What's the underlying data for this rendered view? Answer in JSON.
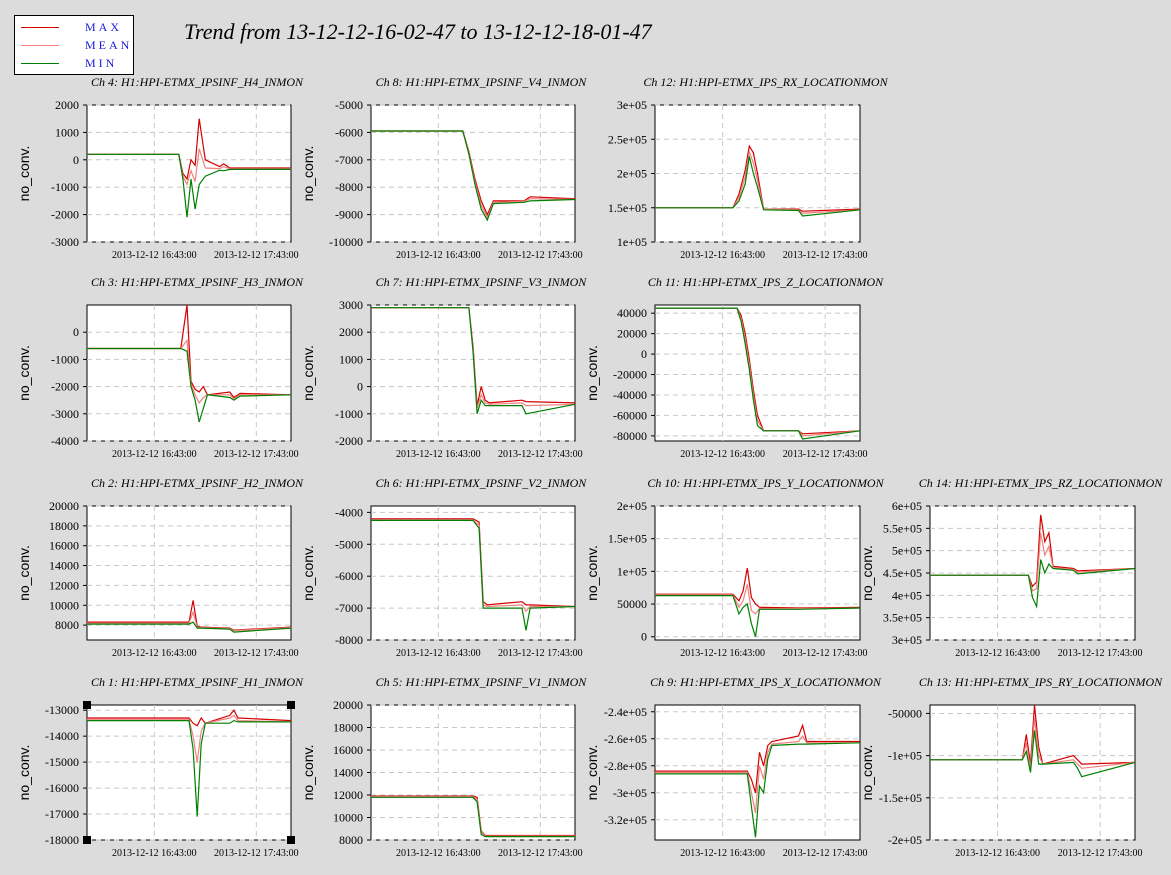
{
  "page": {
    "title": "Trend from 13-12-12-16-02-47 to 13-12-12-18-01-47"
  },
  "legend": {
    "items": [
      {
        "label": "MAX",
        "color": "#d40000"
      },
      {
        "label": "MEAN",
        "color": "#f08080"
      },
      {
        "label": "MIN",
        "color": "#008000"
      }
    ]
  },
  "chart_data": [
    {
      "type": "line",
      "title": "Ch 4: H1:HPI-ETMX_IPSINF_H4_INMON",
      "ylabel": "no_conv.",
      "ylim": [
        -3000,
        2000
      ],
      "yticks": [
        "2000",
        "1000",
        "0",
        "-1000",
        "-2000",
        "-3000"
      ],
      "xticks": [
        "2013-12-12 16:43:00",
        "2013-12-12 17:43:00"
      ],
      "x": [
        0.0,
        0.45,
        0.47,
        0.49,
        0.51,
        0.53,
        0.55,
        0.58,
        0.65,
        0.67,
        0.7,
        1.0
      ],
      "series": [
        {
          "name": "MAX",
          "values": [
            200,
            200,
            -500,
            -700,
            0,
            -200,
            1500,
            0,
            -250,
            -150,
            -300,
            -300
          ]
        },
        {
          "name": "MEAN",
          "values": [
            200,
            200,
            -600,
            -900,
            -400,
            -800,
            400,
            -300,
            -320,
            -250,
            -330,
            -330
          ]
        },
        {
          "name": "MIN",
          "values": [
            200,
            200,
            -700,
            -2100,
            -700,
            -1800,
            -900,
            -600,
            -380,
            -400,
            -350,
            -350
          ]
        }
      ]
    },
    {
      "type": "line",
      "title": "Ch 8: H1:HPI-ETMX_IPSINF_V4_INMON",
      "ylabel": "no_conv.",
      "ylim": [
        -10000,
        -5000
      ],
      "yticks": [
        "-5000",
        "-6000",
        "-7000",
        "-8000",
        "-9000",
        "-10000"
      ],
      "xticks": [
        "2013-12-12 16:43:00",
        "2013-12-12 17:43:00"
      ],
      "x": [
        0.0,
        0.45,
        0.48,
        0.51,
        0.54,
        0.57,
        0.6,
        0.75,
        0.78,
        1.0
      ],
      "series": [
        {
          "name": "MAX",
          "values": [
            -5950,
            -5950,
            -6700,
            -7700,
            -8500,
            -9000,
            -8500,
            -8500,
            -8350,
            -8420
          ]
        },
        {
          "name": "MEAN",
          "values": [
            -5950,
            -5950,
            -6750,
            -7800,
            -8650,
            -9100,
            -8550,
            -8520,
            -8420,
            -8440
          ]
        },
        {
          "name": "MIN",
          "values": [
            -5950,
            -5950,
            -6800,
            -7900,
            -8800,
            -9200,
            -8600,
            -8550,
            -8500,
            -8450
          ]
        }
      ]
    },
    {
      "type": "line",
      "title": "Ch 12: H1:HPI-ETMX_IPS_RX_LOCATIONMON",
      "ylabel": "",
      "ylim": [
        100000,
        300000
      ],
      "yticks": [
        "3e+05",
        "2.5e+05",
        "2e+05",
        "1.5e+05",
        "1e+05"
      ],
      "xticks": [
        "2013-12-12 16:43:00",
        "2013-12-12 17:43:00"
      ],
      "x": [
        0.0,
        0.38,
        0.41,
        0.44,
        0.46,
        0.48,
        0.5,
        0.53,
        0.7,
        0.72,
        1.0
      ],
      "series": [
        {
          "name": "MAX",
          "values": [
            150000,
            150000,
            170000,
            205000,
            240000,
            230000,
            200000,
            148000,
            148000,
            145000,
            148000
          ]
        },
        {
          "name": "MEAN",
          "values": [
            150000,
            150000,
            165000,
            195000,
            232000,
            215000,
            190000,
            148000,
            147000,
            142000,
            147000
          ]
        },
        {
          "name": "MIN",
          "values": [
            150000,
            150000,
            160000,
            185000,
            225000,
            200000,
            180000,
            147000,
            146000,
            138000,
            147000
          ]
        }
      ]
    },
    {
      "type": "line",
      "title": "Ch 3: H1:HPI-ETMX_IPSINF_H3_INMON",
      "ylabel": "no_conv.",
      "ylim": [
        -4000,
        1000
      ],
      "yticks": [
        "0",
        "-1000",
        "-2000",
        "-3000",
        "-4000"
      ],
      "xticks": [
        "2013-12-12 16:43:00",
        "2013-12-12 17:43:00"
      ],
      "x": [
        0.0,
        0.46,
        0.49,
        0.51,
        0.53,
        0.55,
        0.57,
        0.59,
        0.7,
        0.72,
        0.75,
        1.0
      ],
      "series": [
        {
          "name": "MAX",
          "values": [
            -600,
            -600,
            1000,
            -1800,
            -2100,
            -2200,
            -2000,
            -2300,
            -2200,
            -2400,
            -2250,
            -2300
          ]
        },
        {
          "name": "MEAN",
          "values": [
            -600,
            -600,
            -300,
            -1900,
            -2300,
            -2600,
            -2400,
            -2300,
            -2300,
            -2450,
            -2300,
            -2300
          ]
        },
        {
          "name": "MIN",
          "values": [
            -600,
            -600,
            -700,
            -2000,
            -2500,
            -3300,
            -2800,
            -2300,
            -2400,
            -2500,
            -2350,
            -2300
          ]
        }
      ]
    },
    {
      "type": "line",
      "title": "Ch 7: H1:HPI-ETMX_IPSINF_V3_INMON",
      "ylabel": "no_conv.",
      "ylim": [
        -2000,
        3000
      ],
      "yticks": [
        "3000",
        "2000",
        "1000",
        "0",
        "-1000",
        "-2000"
      ],
      "xticks": [
        "2013-12-12 16:43:00",
        "2013-12-12 17:43:00"
      ],
      "x": [
        0.0,
        0.48,
        0.5,
        0.52,
        0.54,
        0.56,
        0.58,
        0.74,
        0.76,
        1.0
      ],
      "series": [
        {
          "name": "MAX",
          "values": [
            2900,
            2900,
            1500,
            -700,
            0,
            -500,
            -600,
            -500,
            -550,
            -600
          ]
        },
        {
          "name": "MEAN",
          "values": [
            2900,
            2900,
            1400,
            -800,
            -300,
            -600,
            -650,
            -600,
            -700,
            -650
          ]
        },
        {
          "name": "MIN",
          "values": [
            2900,
            2900,
            1300,
            -1000,
            -500,
            -700,
            -700,
            -700,
            -1000,
            -650
          ]
        }
      ]
    },
    {
      "type": "line",
      "title": "Ch 11: H1:HPI-ETMX_IPS_Z_LOCATIONMON",
      "ylabel": "no_conv.",
      "ylim": [
        -85000,
        48000
      ],
      "yticks": [
        "40000",
        "20000",
        "0",
        "-20000",
        "-40000",
        "-60000",
        "-80000"
      ],
      "xticks": [
        "2013-12-12 16:43:00",
        "2013-12-12 17:43:00"
      ],
      "x": [
        0.0,
        0.4,
        0.42,
        0.44,
        0.46,
        0.48,
        0.5,
        0.53,
        0.7,
        0.72,
        1.0
      ],
      "series": [
        {
          "name": "MAX",
          "values": [
            45000,
            45000,
            38000,
            20000,
            -5000,
            -35000,
            -60000,
            -75000,
            -75000,
            -78000,
            -75000
          ]
        },
        {
          "name": "MEAN",
          "values": [
            45000,
            45000,
            35000,
            15000,
            -10000,
            -40000,
            -65000,
            -75000,
            -75000,
            -80000,
            -75000
          ]
        },
        {
          "name": "MIN",
          "values": [
            45000,
            45000,
            32000,
            10000,
            -15000,
            -45000,
            -70000,
            -75000,
            -75000,
            -83000,
            -75000
          ]
        }
      ]
    },
    {
      "type": "line",
      "title": "Ch 2: H1:HPI-ETMX_IPSINF_H2_INMON",
      "ylabel": "no_conv.",
      "ylim": [
        6500,
        20000
      ],
      "yticks": [
        "20000",
        "18000",
        "16000",
        "14000",
        "12000",
        "10000",
        "8000"
      ],
      "xticks": [
        "2013-12-12 16:43:00",
        "2013-12-12 17:43:00"
      ],
      "x": [
        0.0,
        0.5,
        0.52,
        0.54,
        0.56,
        0.7,
        0.72,
        1.0
      ],
      "series": [
        {
          "name": "MAX",
          "values": [
            8300,
            8300,
            10500,
            7900,
            7800,
            7700,
            7500,
            7800
          ]
        },
        {
          "name": "MEAN",
          "values": [
            8200,
            8200,
            9300,
            7800,
            7750,
            7650,
            7450,
            7750
          ]
        },
        {
          "name": "MIN",
          "values": [
            8100,
            8100,
            8300,
            7700,
            7700,
            7600,
            7300,
            7700
          ]
        }
      ]
    },
    {
      "type": "line",
      "title": "Ch 6: H1:HPI-ETMX_IPSINF_V2_INMON",
      "ylabel": "no_conv.",
      "ylim": [
        -8000,
        -3800
      ],
      "yticks": [
        "-4000",
        "-5000",
        "-6000",
        "-7000",
        "-8000"
      ],
      "xticks": [
        "2013-12-12 16:43:00",
        "2013-12-12 17:43:00"
      ],
      "x": [
        0.0,
        0.5,
        0.53,
        0.55,
        0.57,
        0.74,
        0.76,
        0.78,
        1.0
      ],
      "series": [
        {
          "name": "MAX",
          "values": [
            -4200,
            -4200,
            -4300,
            -6800,
            -6900,
            -6800,
            -6900,
            -6900,
            -6950
          ]
        },
        {
          "name": "MEAN",
          "values": [
            -4250,
            -4250,
            -4400,
            -6900,
            -6950,
            -6900,
            -7100,
            -6950,
            -6950
          ]
        },
        {
          "name": "MIN",
          "values": [
            -4250,
            -4250,
            -4500,
            -7000,
            -7000,
            -7000,
            -7700,
            -7000,
            -6950
          ]
        }
      ]
    },
    {
      "type": "line",
      "title": "Ch 10: H1:HPI-ETMX_IPS_Y_LOCATIONMON",
      "ylabel": "no_conv.",
      "ylim": [
        -5000,
        200000
      ],
      "yticks": [
        "2e+05",
        "1.5e+05",
        "1e+05",
        "50000",
        "0"
      ],
      "xticks": [
        "2013-12-12 16:43:00",
        "2013-12-12 17:43:00"
      ],
      "x": [
        0.0,
        0.38,
        0.41,
        0.43,
        0.45,
        0.47,
        0.49,
        0.51,
        0.7,
        1.0
      ],
      "series": [
        {
          "name": "MAX",
          "values": [
            65000,
            65000,
            55000,
            70000,
            105000,
            60000,
            50000,
            45000,
            44000,
            45000
          ]
        },
        {
          "name": "MEAN",
          "values": [
            64000,
            64000,
            45000,
            55000,
            80000,
            40000,
            35000,
            43000,
            43000,
            44000
          ]
        },
        {
          "name": "MIN",
          "values": [
            63000,
            63000,
            35000,
            45000,
            50000,
            20000,
            0,
            42000,
            42000,
            44000
          ]
        }
      ]
    },
    {
      "type": "line",
      "title": "Ch 14: H1:HPI-ETMX_IPS_RZ_LOCATIONMON",
      "ylabel": "no_conv.",
      "ylim": [
        300000,
        600000
      ],
      "yticks": [
        "6e+05",
        "5.5e+05",
        "5e+05",
        "4.5e+05",
        "4e+05",
        "3.5e+05",
        "3e+05"
      ],
      "xticks": [
        "2013-12-12 16:43:00",
        "2013-12-12 17:43:00"
      ],
      "x": [
        0.0,
        0.48,
        0.5,
        0.52,
        0.54,
        0.56,
        0.58,
        0.6,
        0.7,
        0.72,
        1.0
      ],
      "series": [
        {
          "name": "MAX",
          "values": [
            445000,
            445000,
            420000,
            430000,
            580000,
            520000,
            540000,
            465000,
            460000,
            455000,
            460000
          ]
        },
        {
          "name": "MEAN",
          "values": [
            445000,
            445000,
            410000,
            415000,
            540000,
            490000,
            510000,
            462000,
            458000,
            452000,
            460000
          ]
        },
        {
          "name": "MIN",
          "values": [
            445000,
            445000,
            395000,
            375000,
            480000,
            450000,
            470000,
            460000,
            456000,
            448000,
            460000
          ]
        }
      ]
    },
    {
      "type": "line",
      "title": "Ch 1: H1:HPI-ETMX_IPSINF_H1_INMON",
      "ylabel": "no_conv.",
      "ylim": [
        -18000,
        -12800
      ],
      "yticks": [
        "-13000",
        "-14000",
        "-15000",
        "-16000",
        "-17000",
        "-18000"
      ],
      "xticks": [
        "2013-12-12 16:43:00",
        "2013-12-12 17:43:00"
      ],
      "x": [
        0.0,
        0.5,
        0.52,
        0.54,
        0.56,
        0.58,
        0.7,
        0.72,
        0.74,
        1.0
      ],
      "series": [
        {
          "name": "MAX",
          "values": [
            -13300,
            -13300,
            -13500,
            -13600,
            -13300,
            -13500,
            -13200,
            -13000,
            -13300,
            -13400
          ]
        },
        {
          "name": "MEAN",
          "values": [
            -13350,
            -13350,
            -14000,
            -15000,
            -13800,
            -13500,
            -13300,
            -13200,
            -13400,
            -13450
          ]
        },
        {
          "name": "MIN",
          "values": [
            -13400,
            -13400,
            -14500,
            -17100,
            -14300,
            -13500,
            -13500,
            -13400,
            -13450,
            -13450
          ]
        }
      ]
    },
    {
      "type": "line",
      "title": "Ch 5: H1:HPI-ETMX_IPSINF_V1_INMON",
      "ylabel": "no_conv.",
      "ylim": [
        8000,
        20000
      ],
      "yticks": [
        "20000",
        "18000",
        "16000",
        "14000",
        "12000",
        "10000",
        "8000"
      ],
      "xticks": [
        "2013-12-12 16:43:00",
        "2013-12-12 17:43:00"
      ],
      "x": [
        0.0,
        0.5,
        0.52,
        0.54,
        0.56,
        1.0
      ],
      "series": [
        {
          "name": "MAX",
          "values": [
            11900,
            11900,
            11800,
            8800,
            8400,
            8400
          ]
        },
        {
          "name": "MEAN",
          "values": [
            11850,
            11850,
            11600,
            8700,
            8350,
            8350
          ]
        },
        {
          "name": "MIN",
          "values": [
            11800,
            11800,
            11400,
            8500,
            8300,
            8300
          ]
        }
      ]
    },
    {
      "type": "line",
      "title": "Ch 9: H1:HPI-ETMX_IPS_X_LOCATIONMON",
      "ylabel": "no_conv.",
      "ylim": [
        -335000,
        -235000
      ],
      "yticks": [
        "-2.4e+05",
        "-2.6e+05",
        "-2.8e+05",
        "-3e+05",
        "-3.2e+05"
      ],
      "xticks": [
        "2013-12-12 16:43:00",
        "2013-12-12 17:43:00"
      ],
      "x": [
        0.0,
        0.45,
        0.47,
        0.49,
        0.51,
        0.53,
        0.55,
        0.57,
        0.7,
        0.72,
        0.74,
        1.0
      ],
      "series": [
        {
          "name": "MAX",
          "values": [
            -284000,
            -284000,
            -290000,
            -300000,
            -270000,
            -280000,
            -265000,
            -262000,
            -258000,
            -250000,
            -262000,
            -262000
          ]
        },
        {
          "name": "MEAN",
          "values": [
            -285000,
            -285000,
            -300000,
            -315000,
            -280000,
            -290000,
            -270000,
            -264000,
            -262000,
            -258000,
            -263000,
            -263000
          ]
        },
        {
          "name": "MIN",
          "values": [
            -286000,
            -286000,
            -310000,
            -333000,
            -295000,
            -300000,
            -275000,
            -265000,
            -264000,
            -264000,
            -264000,
            -263000
          ]
        }
      ]
    },
    {
      "type": "line",
      "title": "Ch 13: H1:HPI-ETMX_IPS_RY_LOCATIONMON",
      "ylabel": "no_conv.",
      "ylim": [
        -200000,
        -40000
      ],
      "yticks": [
        "-50000",
        "-1e+05",
        "-1.5e+05",
        "-2e+05"
      ],
      "xticks": [
        "2013-12-12 16:43:00",
        "2013-12-12 17:43:00"
      ],
      "x": [
        0.0,
        0.45,
        0.47,
        0.49,
        0.51,
        0.53,
        0.55,
        0.7,
        0.72,
        0.74,
        1.0
      ],
      "series": [
        {
          "name": "MAX",
          "values": [
            -105000,
            -105000,
            -75000,
            -110000,
            -40000,
            -90000,
            -110000,
            -100000,
            -105000,
            -110000,
            -108000
          ]
        },
        {
          "name": "MEAN",
          "values": [
            -105000,
            -105000,
            -85000,
            -115000,
            -55000,
            -100000,
            -110000,
            -105000,
            -110000,
            -115000,
            -108000
          ]
        },
        {
          "name": "MIN",
          "values": [
            -105000,
            -105000,
            -95000,
            -120000,
            -70000,
            -110000,
            -110000,
            -108000,
            -115000,
            -125000,
            -108000
          ]
        }
      ]
    }
  ]
}
